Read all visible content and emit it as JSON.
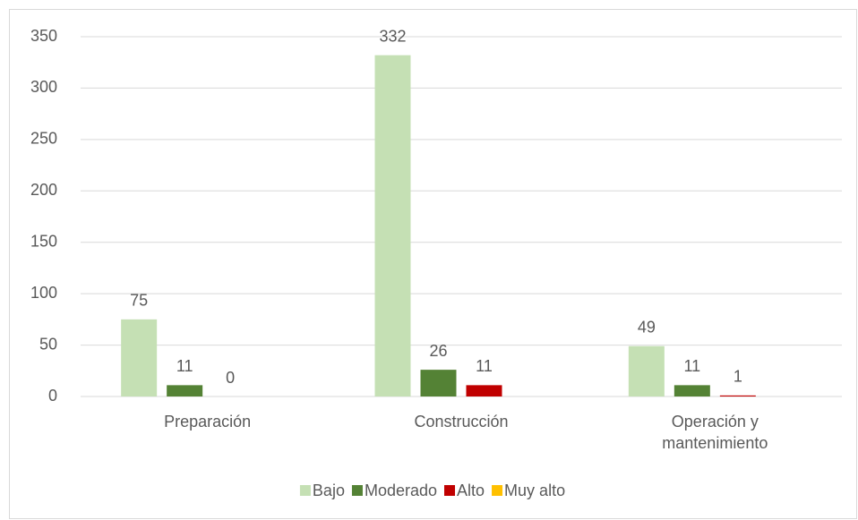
{
  "chart_data": {
    "type": "bar",
    "categories": [
      "Preparación",
      "Construcción",
      "Operación y mantenimiento"
    ],
    "series": [
      {
        "name": "Bajo",
        "color": "#c5e0b4",
        "values": [
          75,
          332,
          49
        ]
      },
      {
        "name": "Moderado",
        "color": "#548235",
        "values": [
          11,
          26,
          11
        ]
      },
      {
        "name": "Alto",
        "color": "#c00000",
        "values": [
          0,
          11,
          1
        ]
      },
      {
        "name": "Muy alto",
        "color": "#ffc000",
        "values": [
          null,
          null,
          null
        ]
      }
    ],
    "ylim": [
      0,
      350
    ],
    "yticks": [
      0,
      50,
      100,
      150,
      200,
      250,
      300,
      350
    ],
    "grid": true,
    "legend": "bottom"
  }
}
